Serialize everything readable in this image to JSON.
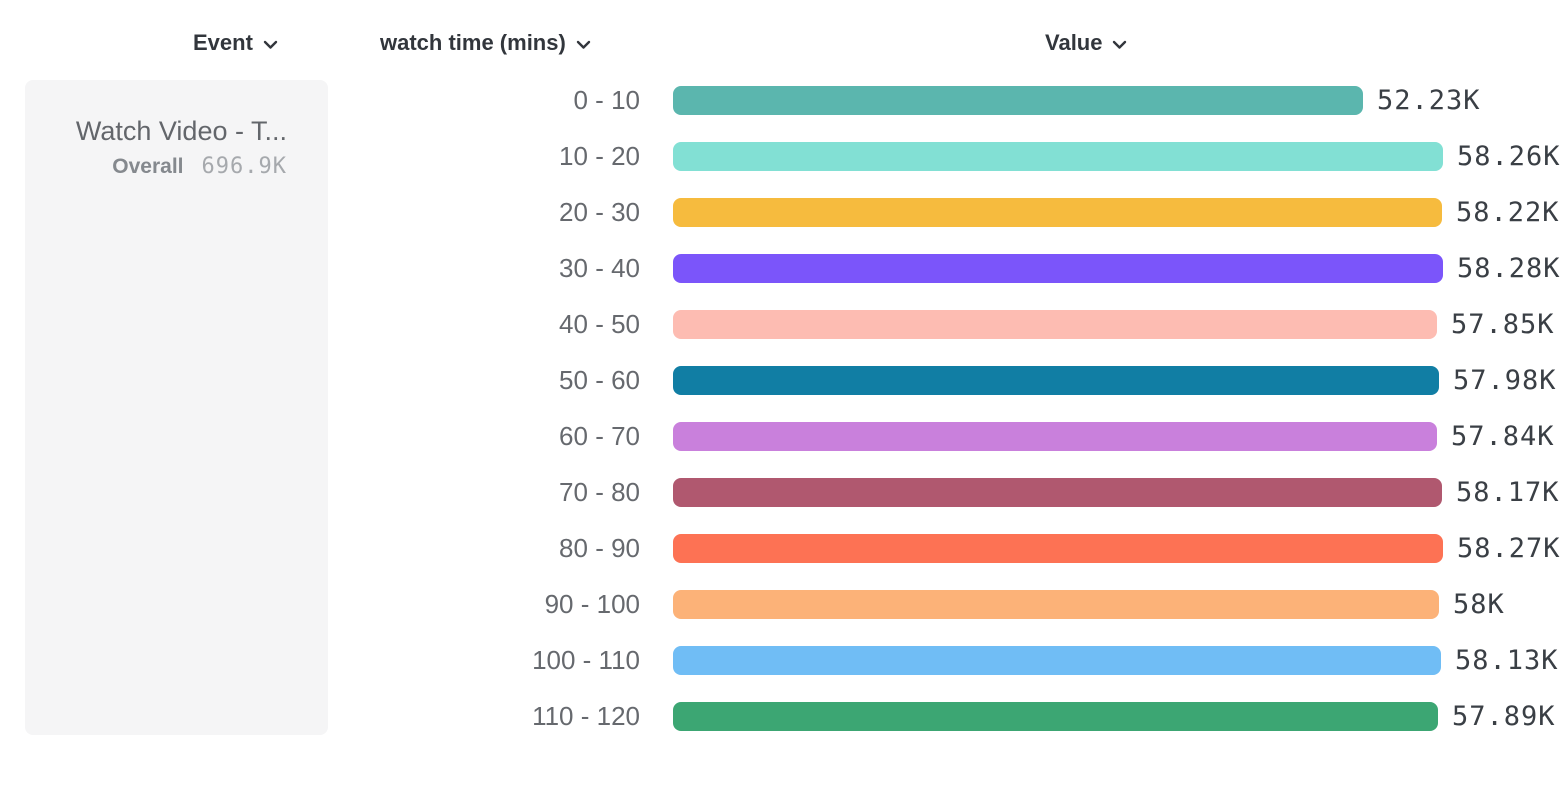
{
  "columns": {
    "event_label": "Event",
    "breakdown_label": "watch time (mins)",
    "value_label": "Value"
  },
  "event_card": {
    "name": "Watch Video - T...",
    "overall_label": "Overall",
    "overall_value": "696.9K"
  },
  "chart_data": {
    "type": "bar",
    "orientation": "horizontal",
    "title": "",
    "xlabel": "Value",
    "ylabel": "watch time (mins)",
    "xlim": [
      0,
      58280
    ],
    "grid": false,
    "legend": false,
    "categories": [
      "0 - 10",
      "10 - 20",
      "20 - 30",
      "30 - 40",
      "40 - 50",
      "50 - 60",
      "60 - 70",
      "70 - 80",
      "80 - 90",
      "90 - 100",
      "100 - 110",
      "110 - 120"
    ],
    "values": [
      52230,
      58260,
      58220,
      58280,
      57850,
      57980,
      57840,
      58170,
      58270,
      58000,
      58130,
      57890
    ],
    "value_labels": [
      "52.23K",
      "58.26K",
      "58.22K",
      "58.28K",
      "57.85K",
      "57.98K",
      "57.84K",
      "58.17K",
      "58.27K",
      "58K",
      "58.13K",
      "57.89K"
    ],
    "bar_colors": [
      "#5bb6ae",
      "#82e0d4",
      "#f6bb3e",
      "#7b55fa",
      "#fdbcb2",
      "#117ea4",
      "#c980dc",
      "#b0586f",
      "#fd7254",
      "#fcb278",
      "#70bdf5",
      "#3ca673"
    ]
  },
  "layout": {
    "row_top_start": 86,
    "row_pitch": 56,
    "bar_left": 673,
    "bar_max_width": 770,
    "value_label_gap": 14
  }
}
